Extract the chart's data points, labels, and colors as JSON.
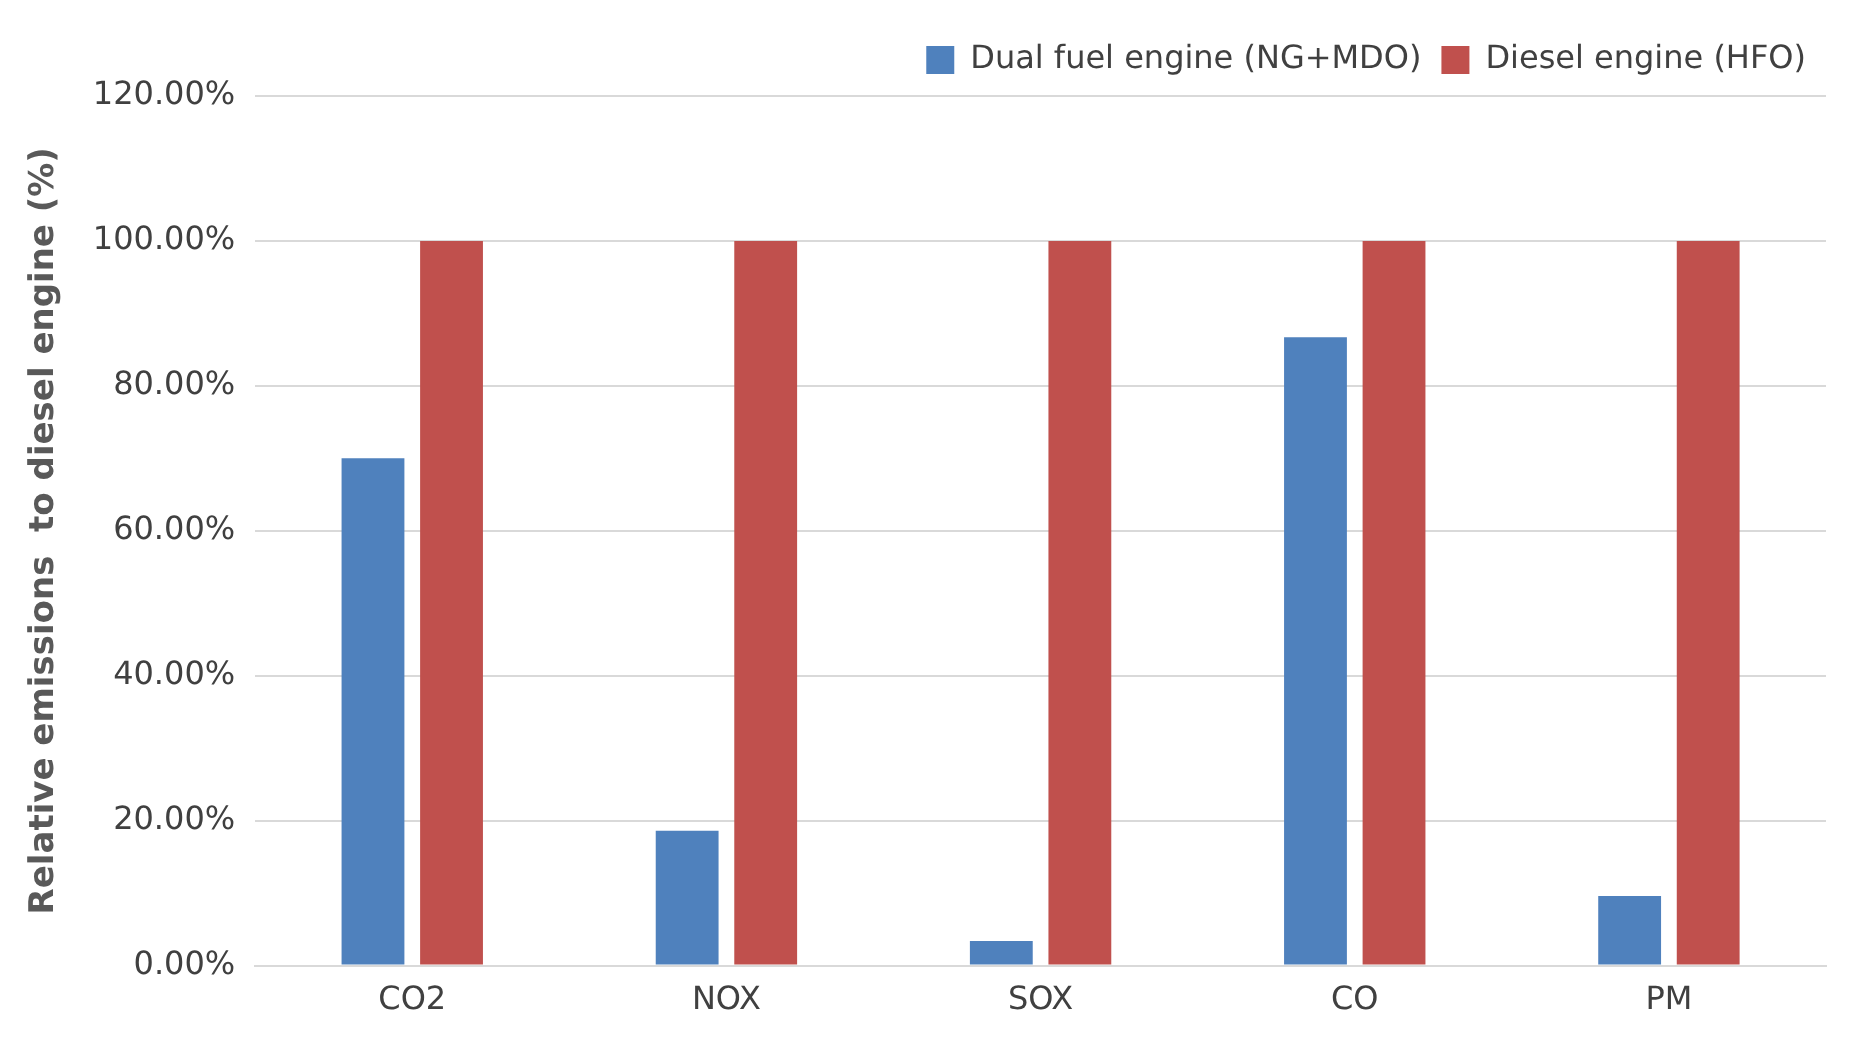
{
  "chart_data": {
    "type": "bar",
    "categories": [
      "CO2",
      "NOX",
      "SOX",
      "CO",
      "PM"
    ],
    "series": [
      {
        "name": "Dual fuel engine (NG+MDO)",
        "color": "#4f81bd",
        "values": [
          70,
          18.6,
          3.4,
          86.7,
          9.6
        ]
      },
      {
        "name": "Diesel engine (HFO)",
        "color": "#c0504d",
        "values": [
          100,
          100,
          100,
          100,
          100
        ]
      }
    ],
    "ylabel": "Relative emissions  to diesel engine (%)",
    "ylim": [
      0,
      120
    ],
    "yticks": [
      {
        "value": 0,
        "label": "0.00%"
      },
      {
        "value": 20,
        "label": "20.00%"
      },
      {
        "value": 40,
        "label": "40.00%"
      },
      {
        "value": 60,
        "label": "60.00%"
      },
      {
        "value": 80,
        "label": "80.00%"
      },
      {
        "value": 100,
        "label": "100.00%"
      },
      {
        "value": 120,
        "label": "120.00%"
      }
    ],
    "grid": "y",
    "legend": "top"
  }
}
